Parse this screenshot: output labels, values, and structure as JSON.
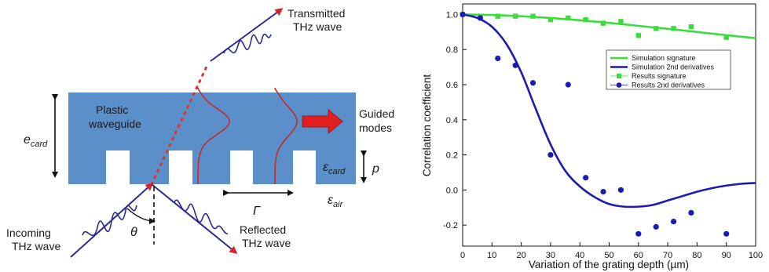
{
  "diagram": {
    "transmitted_label": [
      "Transmitted",
      "THz wave"
    ],
    "waveguide_label": [
      "Plastic",
      "waveguide"
    ],
    "guided_label": [
      "Guided",
      "modes"
    ],
    "e_card_main": "e",
    "e_card_sub": "card",
    "eps_card_main": "ε",
    "eps_card_sub": "card",
    "eps_air_main": "ε",
    "eps_air_sub": "air",
    "p_label": "p",
    "gamma_label": "Γ",
    "theta_label": "θ",
    "incoming_label": [
      "Incoming",
      "THz wave"
    ],
    "reflected_label": [
      "Reflected",
      "THz wave"
    ],
    "colors": {
      "waveguide": "#5b8fc9",
      "beam": "#2b2a8f",
      "arrowhead": "#e02020",
      "mode_curve": "#c62828",
      "guided_arrow": "#e02020"
    }
  },
  "chart_data": {
    "type": "scatter",
    "xlabel": "Variation of the grating depth (µm)",
    "ylabel": "Correlation coefficient",
    "xlim": [
      0,
      100
    ],
    "ylim": [
      -0.32,
      1.06
    ],
    "xticks": [
      0,
      10,
      20,
      30,
      40,
      50,
      60,
      70,
      80,
      90,
      100
    ],
    "yticks": [
      -0.2,
      0.0,
      0.2,
      0.4,
      0.6,
      0.8,
      1.0
    ],
    "ytick_labels": [
      "-0.2",
      "0.0",
      "0.2",
      "0.4",
      "0.6",
      "0.8",
      "1.0"
    ],
    "grid": false,
    "legend_position": "center-right",
    "series": [
      {
        "name": "Simulation signature",
        "kind": "line",
        "color": "#3ddc3d",
        "x": [
          0,
          10,
          20,
          30,
          40,
          50,
          60,
          70,
          80,
          90,
          100
        ],
        "y": [
          1.0,
          0.997,
          0.99,
          0.98,
          0.967,
          0.952,
          0.935,
          0.918,
          0.9,
          0.882,
          0.865
        ]
      },
      {
        "name": "Simulation 2nd derivatives",
        "kind": "line",
        "color": "#1b1bb4",
        "x": [
          0,
          5,
          10,
          15,
          20,
          25,
          30,
          35,
          40,
          45,
          50,
          55,
          60,
          65,
          70,
          75,
          80,
          85,
          90,
          95,
          100
        ],
        "y": [
          1.0,
          0.98,
          0.93,
          0.83,
          0.67,
          0.46,
          0.26,
          0.11,
          0.02,
          -0.04,
          -0.08,
          -0.095,
          -0.095,
          -0.085,
          -0.06,
          -0.035,
          -0.01,
          0.01,
          0.025,
          0.035,
          0.04
        ]
      },
      {
        "name": "Results signature",
        "kind": "markers",
        "marker": "square",
        "color": "#3ddc3d",
        "x": [
          0,
          6,
          12,
          18,
          24,
          30,
          36,
          42,
          48,
          54,
          60,
          66,
          72,
          78,
          90
        ],
        "y": [
          1.0,
          0.99,
          0.99,
          0.99,
          0.99,
          0.97,
          0.98,
          0.97,
          0.95,
          0.96,
          0.88,
          0.92,
          0.92,
          0.93,
          0.87
        ]
      },
      {
        "name": "Results 2nd derivatives",
        "kind": "markers",
        "marker": "circle",
        "color": "#1b1bb4",
        "x": [
          0,
          6,
          12,
          18,
          24,
          30,
          36,
          42,
          48,
          54,
          60,
          66,
          72,
          78,
          90
        ],
        "y": [
          1.0,
          0.98,
          0.75,
          0.71,
          0.61,
          0.2,
          0.6,
          0.07,
          -0.01,
          0.0,
          -0.25,
          -0.21,
          -0.18,
          -0.13,
          -0.25
        ]
      }
    ]
  }
}
